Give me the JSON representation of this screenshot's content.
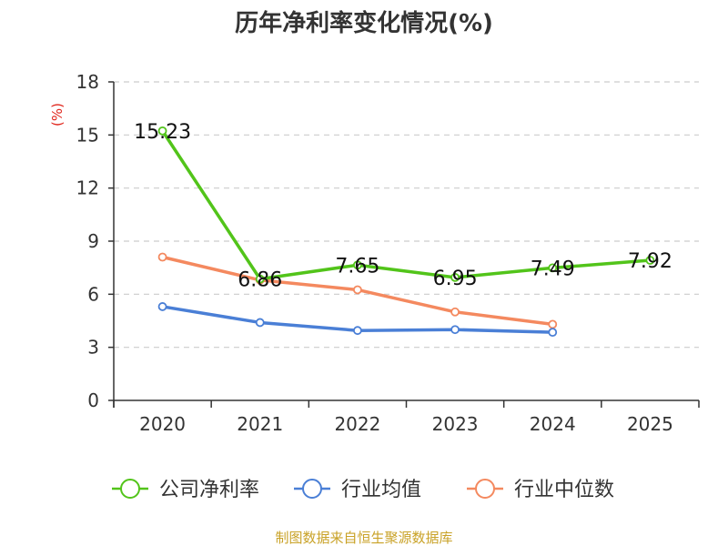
{
  "chart_data": {
    "type": "line",
    "title": "历年净利率变化情况(%)",
    "ylabel": "(%)",
    "xlabel": "",
    "categories": [
      "2020",
      "2021",
      "2022",
      "2023",
      "2024",
      "2025"
    ],
    "ylim": [
      0,
      18
    ],
    "yticks": [
      0,
      3,
      6,
      9,
      12,
      15,
      18
    ],
    "grid": true,
    "legend_position": "bottom",
    "series": [
      {
        "name": "公司净利率",
        "color": "#52c41a",
        "values": [
          15.23,
          6.86,
          7.65,
          6.95,
          7.49,
          7.92
        ],
        "data_labels": [
          "15.23",
          "6.86",
          "7.65",
          "6.95",
          "7.49",
          "7.92"
        ]
      },
      {
        "name": "行业均值",
        "color": "#4a7fd6",
        "values": [
          5.3,
          4.4,
          3.95,
          4.0,
          3.85,
          null
        ],
        "data_labels": []
      },
      {
        "name": "行业中位数",
        "color": "#f4895f",
        "values": [
          8.1,
          6.8,
          6.25,
          5.0,
          4.3,
          null
        ],
        "data_labels": []
      }
    ]
  },
  "source": "制图数据来自恒生聚源数据库"
}
